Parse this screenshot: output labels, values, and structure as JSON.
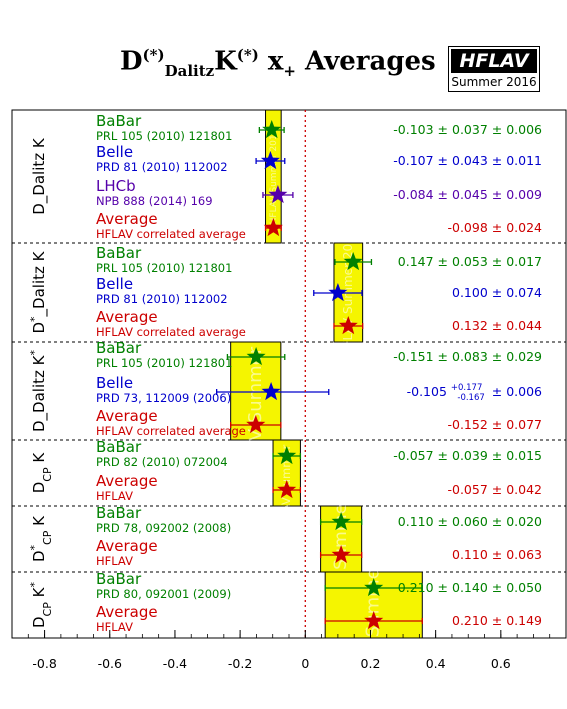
{
  "title": {
    "base": "D",
    "sup1": "(*)",
    "sub1": "Dalitz",
    "mid": "K",
    "sup2": "(*)",
    "x": " x",
    "sub2": "+",
    "tail": " Averages"
  },
  "logo": {
    "name": "HFLAV",
    "edition": "Summer 2016"
  },
  "watermark": "HFLAV Summer 2016",
  "colors": {
    "BaBar": "#008000",
    "Belle": "#0000cc",
    "LHCb": "#5500aa",
    "Average": "#cc0000",
    "band": "#f5f500",
    "zero_line": "#cc0000"
  },
  "chart_data": {
    "type": "scatter",
    "orientation": "horizontal error bars",
    "xlim": [
      -0.9,
      0.8
    ],
    "xticks": [
      "-0.8",
      "-0.6",
      "-0.4",
      "-0.2",
      "0",
      "0.2",
      "0.4",
      "0.6"
    ],
    "xtick_values": [
      -0.8,
      -0.6,
      -0.4,
      -0.2,
      0,
      0.2,
      0.4,
      0.6
    ],
    "zero_line": 0,
    "groups": [
      {
        "label": "D_Dalitz K",
        "label_parts": [
          {
            "t": "D_Dalitz K"
          }
        ],
        "band": [
          -0.122,
          -0.074
        ],
        "entries": [
          {
            "exp": "BaBar",
            "ref": "PRL 105 (2010) 121801",
            "value": -0.103,
            "err": 0.038,
            "text": "-0.103 ± 0.037 ± 0.006"
          },
          {
            "exp": "Belle",
            "ref": "PRD 81 (2010) 112002",
            "value": -0.107,
            "err": 0.044,
            "text": "-0.107 ± 0.043 ± 0.011"
          },
          {
            "exp": "LHCb",
            "ref": "NPB 888 (2014) 169",
            "value": -0.084,
            "err": 0.046,
            "text": "-0.084 ± 0.045 ± 0.009"
          },
          {
            "exp": "Average",
            "ref": "HFLAV correlated average",
            "value": -0.098,
            "err": 0.024,
            "text": "-0.098 ± 0.024"
          }
        ]
      },
      {
        "label": "D*_Dalitz K",
        "label_parts": [
          {
            "t": "D"
          },
          {
            "t": "*",
            "sup": true
          },
          {
            "t": "_Dalitz K"
          }
        ],
        "band": [
          0.088,
          0.176
        ],
        "entries": [
          {
            "exp": "BaBar",
            "ref": "PRL 105 (2010) 121801",
            "value": 0.147,
            "err": 0.056,
            "text": "0.147 ± 0.053 ± 0.017"
          },
          {
            "exp": "Belle",
            "ref": "PRD 81 (2010) 112002",
            "value": 0.1,
            "err": 0.074,
            "text": "0.100 ± 0.074"
          },
          {
            "exp": "Average",
            "ref": "HFLAV correlated average",
            "value": 0.132,
            "err": 0.044,
            "text": "0.132 ± 0.044"
          }
        ]
      },
      {
        "label": "D_Dalitz K*",
        "label_parts": [
          {
            "t": "D_Dalitz K"
          },
          {
            "t": "*",
            "sup": true
          }
        ],
        "band": [
          -0.229,
          -0.075
        ],
        "entries": [
          {
            "exp": "BaBar",
            "ref": "PRL 105 (2010) 121801",
            "value": -0.151,
            "err": 0.088,
            "text": "-0.151 ± 0.083 ± 0.029"
          },
          {
            "exp": "Belle",
            "ref": "PRD 73, 112009 (2006)",
            "value": -0.105,
            "err_plus": 0.177,
            "err_minus": 0.167,
            "text": "-0.105",
            "text_plus": "+0.177",
            "text_minus": "-0.167",
            "text_syst": "± 0.006"
          },
          {
            "exp": "Average",
            "ref": "HFLAV correlated average",
            "value": -0.152,
            "err": 0.077,
            "text": "-0.152 ± 0.077"
          }
        ]
      },
      {
        "label": "DCP K",
        "label_parts": [
          {
            "t": "D"
          },
          {
            "t": "CP",
            "sub": true
          },
          {
            "t": " K"
          }
        ],
        "band": [
          -0.099,
          -0.015
        ],
        "entries": [
          {
            "exp": "BaBar",
            "ref": "PRD 82 (2010) 072004",
            "value": -0.057,
            "err": 0.042,
            "text": "-0.057 ± 0.039 ± 0.015"
          },
          {
            "exp": "Average",
            "ref": "HFLAV",
            "value": -0.057,
            "err": 0.042,
            "text": "-0.057 ± 0.042"
          }
        ]
      },
      {
        "label": "D*CP K",
        "label_parts": [
          {
            "t": "D"
          },
          {
            "t": "*",
            "sup": true
          },
          {
            "t": "CP",
            "sub": true
          },
          {
            "t": " K"
          }
        ],
        "band": [
          0.047,
          0.173
        ],
        "entries": [
          {
            "exp": "BaBar",
            "ref": "PRD 78, 092002 (2008)",
            "value": 0.11,
            "err": 0.063,
            "text": "0.110 ± 0.060 ± 0.020"
          },
          {
            "exp": "Average",
            "ref": "HFLAV",
            "value": 0.11,
            "err": 0.063,
            "text": "0.110 ± 0.063"
          }
        ]
      },
      {
        "label": "DCP K*",
        "label_parts": [
          {
            "t": "D"
          },
          {
            "t": "CP",
            "sub": true
          },
          {
            "t": " K"
          },
          {
            "t": "*",
            "sup": true
          }
        ],
        "band": [
          0.061,
          0.359
        ],
        "entries": [
          {
            "exp": "BaBar",
            "ref": "PRD 80, 092001 (2009)",
            "value": 0.21,
            "err": 0.149,
            "text": "0.210 ± 0.140 ± 0.050"
          },
          {
            "exp": "Average",
            "ref": "HFLAV",
            "value": 0.21,
            "err": 0.149,
            "text": "0.210 ± 0.149"
          }
        ]
      }
    ]
  }
}
